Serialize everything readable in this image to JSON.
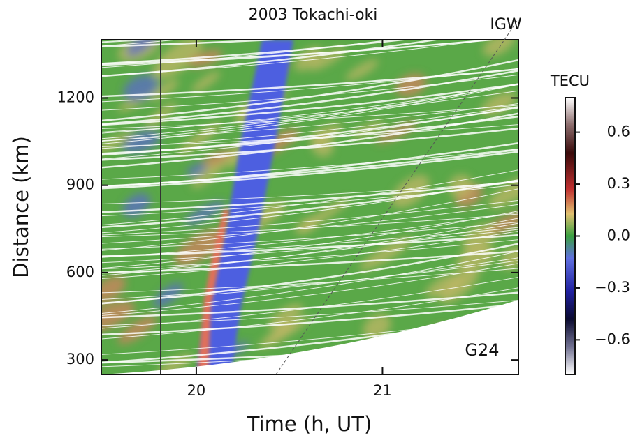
{
  "chart_data": {
    "type": "heatmap",
    "title": "2003 Tokachi-oki",
    "x_label": "Time (h, UT)",
    "y_label": "Distance (km)",
    "xlim": [
      19.49,
      21.73
    ],
    "xticks": [
      20,
      21
    ],
    "ylim": [
      250,
      1400
    ],
    "yticks": [
      300,
      600,
      900,
      1200
    ],
    "colorbar": {
      "label": "TECU",
      "lim": [
        -0.8,
        0.8
      ],
      "ticks": [
        0.6,
        0.3,
        {
          "value": 0,
          "label": "0.0"
        },
        {
          "value": -0.3,
          "label": "−0.3"
        },
        {
          "value": -0.6,
          "label": "−0.6"
        }
      ]
    },
    "annotations": [
      "IGW",
      "G24"
    ]
  }
}
